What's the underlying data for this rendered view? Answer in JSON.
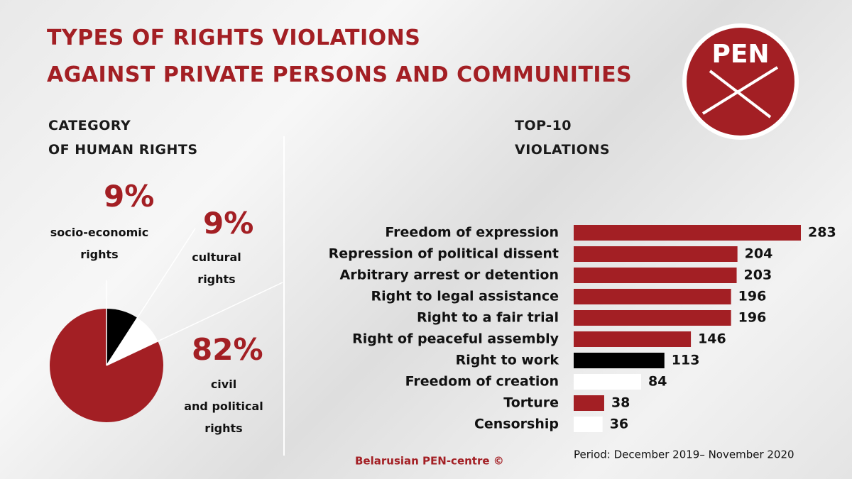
{
  "title": [
    "TYPES OF RIGHTS VIOLATIONS",
    "AGAINST PRIVATE PERSONS AND COMMUNITIES"
  ],
  "logo": "PEN",
  "footer": "Belarusian PEN-centre ©",
  "chart_data": [
    {
      "type": "pie",
      "title": "CATEGORY\nOF HUMAN RIGHTS",
      "categories": [
        "socio-economic\nrights",
        "cultural\nrights",
        "civil\nand political\nrights"
      ],
      "values": [
        9,
        9,
        82
      ],
      "value_labels": [
        "9%",
        "9%",
        "82%"
      ],
      "colors": [
        "#000000",
        "#ffffff",
        "#a31f24"
      ]
    },
    {
      "type": "bar",
      "title": "TOP-10\nVIOLATIONS",
      "categories": [
        "Freedom of expression",
        "Repression of political dissent",
        "Arbitrary arrest or detention",
        "Right to legal assistance",
        "Right to a fair trial",
        "Right of peaceful assembly",
        "Right to work",
        "Freedom of creation",
        "Torture",
        "Censorship"
      ],
      "values": [
        283,
        204,
        203,
        196,
        196,
        146,
        113,
        84,
        38,
        36
      ],
      "colors": [
        "#a31f24",
        "#a31f24",
        "#a31f24",
        "#a31f24",
        "#a31f24",
        "#a31f24",
        "#000000",
        "#ffffff",
        "#a31f24",
        "#ffffff"
      ],
      "note": "Period: December 2019– November 2020"
    }
  ]
}
